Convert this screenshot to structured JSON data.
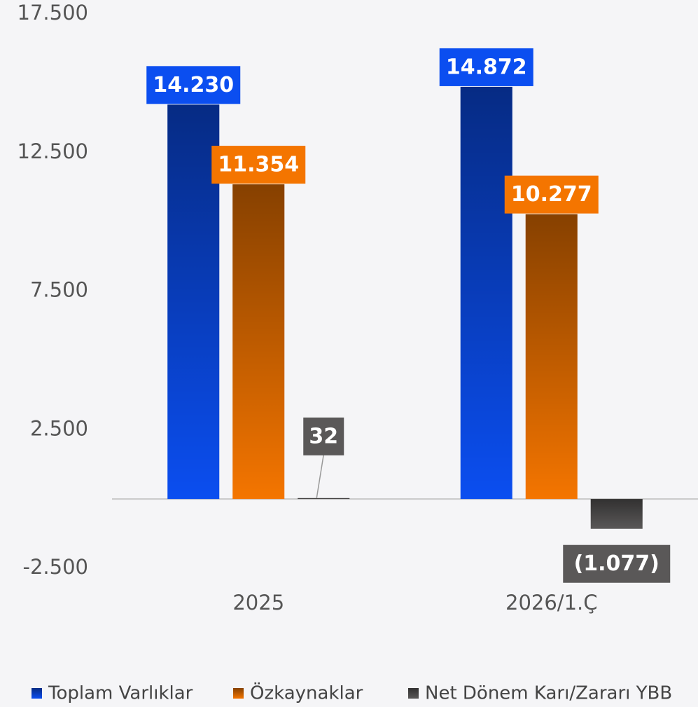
{
  "chart_data": {
    "type": "bar",
    "categories": [
      "2025",
      "2026/1.Ç"
    ],
    "series": [
      {
        "name": "Toplam Varlıklar",
        "color": "#0b4ef0",
        "values": [
          14230,
          14872
        ],
        "value_labels": [
          "14.230",
          "14.872"
        ]
      },
      {
        "name": "Özkaynaklar",
        "color": "#f47500",
        "values": [
          11354,
          10277
        ],
        "value_labels": [
          "11.354",
          "10.277"
        ]
      },
      {
        "name": "Net Dönem Karı/Zararı YBB",
        "color": "#5a5858",
        "values": [
          32,
          -1077
        ],
        "value_labels": [
          "32",
          "(1.077)"
        ]
      }
    ],
    "ylim": [
      -2500,
      17500
    ],
    "yticks": [
      {
        "value": -2500,
        "label": "-2.500"
      },
      {
        "value": 2500,
        "label": "2.500"
      },
      {
        "value": 7500,
        "label": "7.500"
      },
      {
        "value": 12500,
        "label": "12.500"
      },
      {
        "value": 17500,
        "label": "17.500"
      }
    ],
    "grid": false,
    "legend": "bottom"
  }
}
